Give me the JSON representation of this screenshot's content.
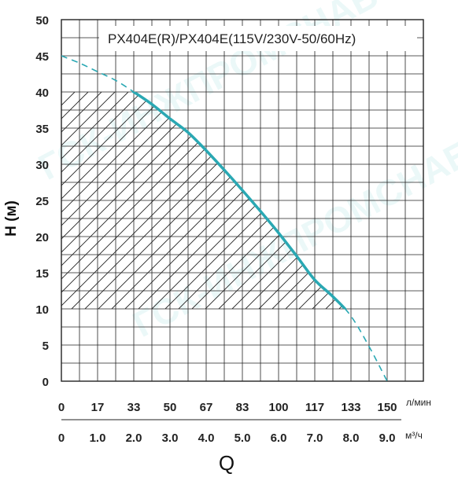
{
  "chart_data": {
    "type": "line",
    "title": "PX404E(R)/PX404E(115V/230V-50/60Hz)",
    "ylabel": "H (м)",
    "xlabel": "Q",
    "ylim": [
      0,
      50
    ],
    "yticks": [
      "0",
      "5",
      "10",
      "15",
      "20",
      "25",
      "30",
      "35",
      "40",
      "45",
      "50"
    ],
    "xlim": [
      0,
      10
    ],
    "x_axis_m3h": {
      "unit": "м³/ч",
      "ticks": [
        "0",
        "1.0",
        "2.0",
        "3.0",
        "4.0",
        "5.0",
        "6.0",
        "7.0",
        "8.0",
        "9.0"
      ],
      "values": [
        0,
        1,
        2,
        3,
        4,
        5,
        6,
        7,
        8,
        9
      ]
    },
    "x_axis_lmin": {
      "unit": "л/мин",
      "ticks": [
        "0",
        "17",
        "33",
        "50",
        "67",
        "83",
        "100",
        "117",
        "133",
        "150"
      ],
      "positions_m3h": [
        0,
        1,
        2,
        3,
        4,
        5,
        6,
        7,
        8,
        9
      ]
    },
    "grid": true,
    "series": [
      {
        "x": [
          0,
          0.5,
          1,
          1.5,
          2,
          2.5,
          3,
          3.5,
          4,
          4.5,
          5,
          5.5,
          6,
          6.5,
          7,
          7.5,
          8,
          8.5,
          9
        ],
        "y": [
          45,
          44,
          42.8,
          41.6,
          40,
          38.3,
          36.3,
          34.4,
          31.9,
          29.2,
          26.4,
          23.5,
          20.5,
          17.3,
          14,
          11.7,
          9,
          4.8,
          0
        ],
        "recommended_range": {
          "h_min": 10,
          "h_max": 40
        }
      }
    ],
    "annotations": [
      "ГСК-ИНЖПРОМСНАБ"
    ]
  },
  "colors": {
    "curve": "#2aa8b3",
    "grid": "#222222",
    "hatch": "#222222",
    "watermark": "#5fc8c8"
  }
}
